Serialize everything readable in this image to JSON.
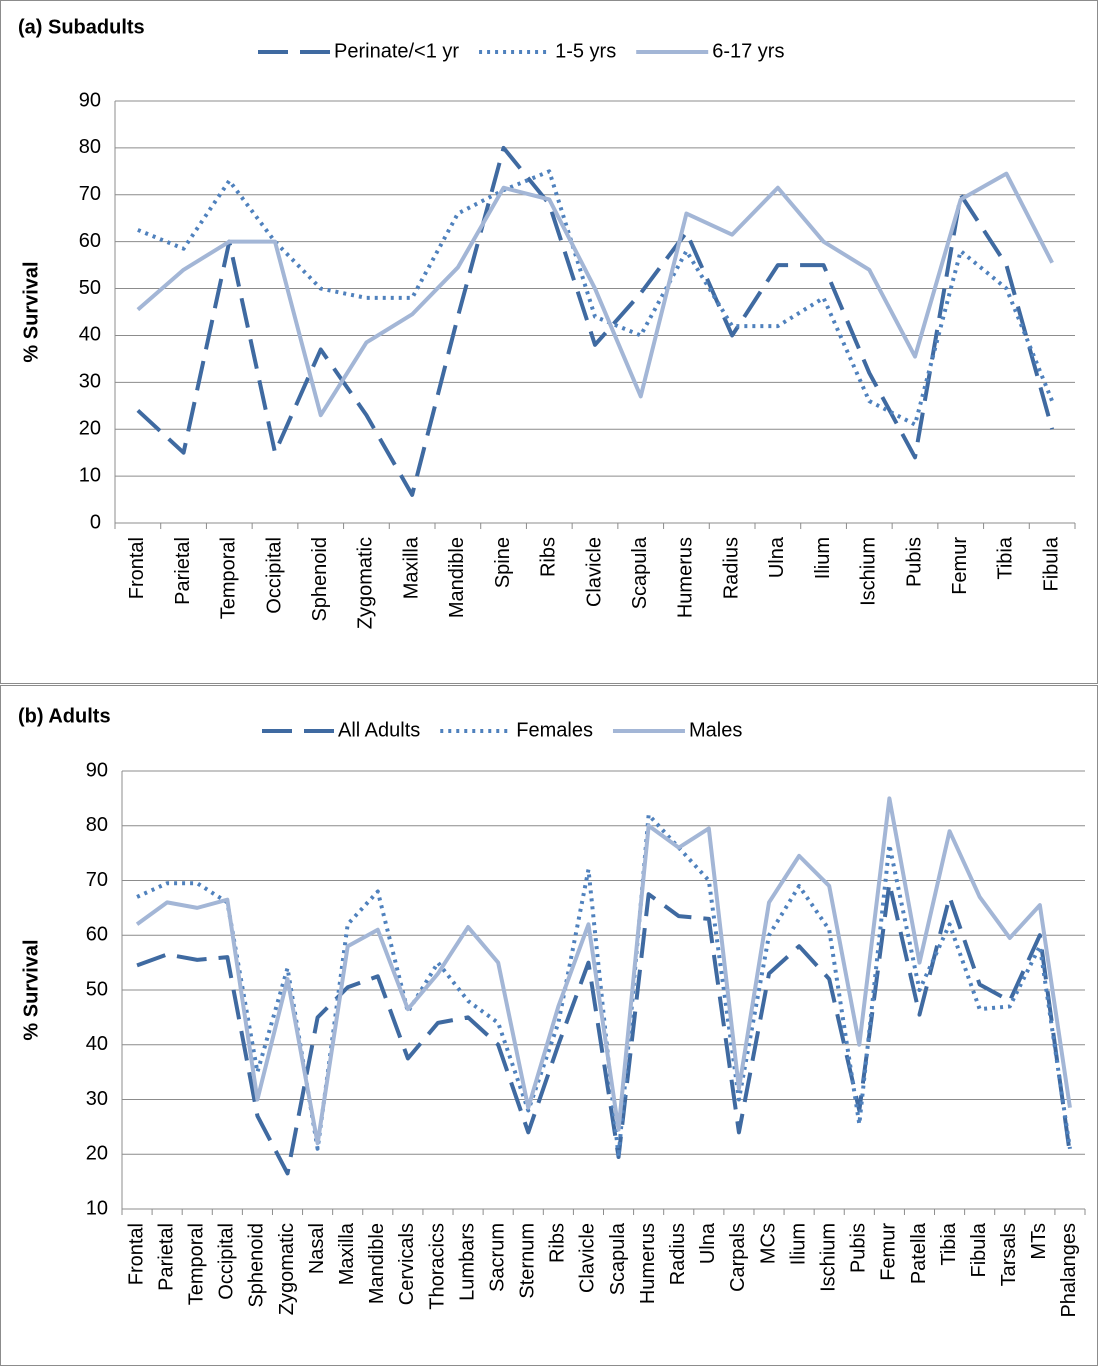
{
  "chart_data": [
    {
      "type": "line",
      "title": "(a) Subadults",
      "y_label": "% Survival",
      "categories": [
        "Frontal",
        "Parietal",
        "Temporal",
        "Occipital",
        "Sphenoid",
        "Zygomatic",
        "Maxilla",
        "Mandible",
        "Spine",
        "Ribs",
        "Clavicle",
        "Scapula",
        "Humerus",
        "Radius",
        "Ulna",
        "Ilium",
        "Ischium",
        "Pubis",
        "Femur",
        "Tibia",
        "Fibula"
      ],
      "series": [
        {
          "name": "Perinate/<1 yr",
          "color": "#3f6aa1",
          "style": "dashed",
          "values": [
            24,
            15,
            60,
            15,
            37,
            23,
            6,
            44,
            80,
            68,
            38,
            49,
            62,
            40,
            55,
            55,
            32,
            14,
            70,
            55,
            20
          ]
        },
        {
          "name": "1-5 yrs",
          "color": "#4f81bd",
          "style": "dotted",
          "values": [
            62.5,
            58.5,
            73,
            60,
            50,
            48,
            48,
            66,
            71,
            75,
            44,
            40,
            58,
            42,
            42,
            48,
            26,
            21,
            58,
            50,
            26
          ]
        },
        {
          "name": "6-17 yrs",
          "color": "#a3b6d6",
          "style": "solid",
          "values": [
            45.5,
            54,
            60,
            60,
            23,
            38.5,
            44.5,
            54.5,
            71.5,
            69,
            50,
            27,
            66,
            61.5,
            71.5,
            60,
            54,
            35.5,
            69,
            74.5,
            55.5
          ]
        }
      ],
      "ylim": [
        0,
        90
      ],
      "yticks": [
        0,
        10,
        20,
        30,
        40,
        50,
        60,
        70,
        80,
        90
      ],
      "grid": true,
      "legend": "top"
    },
    {
      "type": "line",
      "title": "(b) Adults",
      "y_label": "% Survival",
      "categories": [
        "Frontal",
        "Parietal",
        "Temporal",
        "Occipital",
        "Sphenoid",
        "Zygomatic",
        "Nasal",
        "Maxilla",
        "Mandible",
        "Cervicals",
        "Thoracics",
        "Lumbars",
        "Sacrum",
        "Sternum",
        "Ribs",
        "Clavicle",
        "Scapula",
        "Humerus",
        "Radius",
        "Ulna",
        "Carpals",
        "MCs",
        "Ilium",
        "Ischium",
        "Pubis",
        "Femur",
        "Patella",
        "Tibia",
        "Fibula",
        "Tarsals",
        "MTs",
        "Phalanges"
      ],
      "series": [
        {
          "name": "All Adults",
          "color": "#3f6aa1",
          "style": "dashed",
          "values": [
            54.5,
            56.5,
            55.5,
            56,
            27,
            16.5,
            45,
            50.5,
            52.5,
            37.5,
            44,
            45,
            40,
            24,
            40,
            55,
            19.5,
            67.5,
            63.5,
            63,
            24,
            53,
            58,
            52,
            28,
            69.5,
            45.5,
            67,
            51,
            48,
            60,
            20
          ]
        },
        {
          "name": "Females",
          "color": "#4f81bd",
          "style": "dotted",
          "values": [
            67,
            69.5,
            69.5,
            66,
            35,
            54,
            21,
            62,
            68,
            46,
            55,
            48,
            44,
            28,
            44,
            72,
            19.5,
            82,
            76,
            70,
            30,
            60,
            69,
            61,
            25.5,
            76.5,
            50,
            62,
            46.5,
            47,
            58,
            21
          ]
        },
        {
          "name": "Males",
          "color": "#a3b6d6",
          "style": "solid",
          "values": [
            62,
            66,
            65,
            66.5,
            30,
            52,
            22,
            58,
            61,
            46.5,
            53,
            61.5,
            55,
            28.5,
            47,
            62,
            24.5,
            80,
            76,
            79.5,
            32,
            66,
            74.5,
            69,
            40,
            85,
            55,
            79,
            67,
            59.5,
            65.5,
            28.5
          ]
        }
      ],
      "ylim": [
        10,
        90
      ],
      "yticks": [
        10,
        20,
        30,
        40,
        50,
        60,
        70,
        80,
        90
      ],
      "grid": true,
      "legend": "top"
    }
  ]
}
